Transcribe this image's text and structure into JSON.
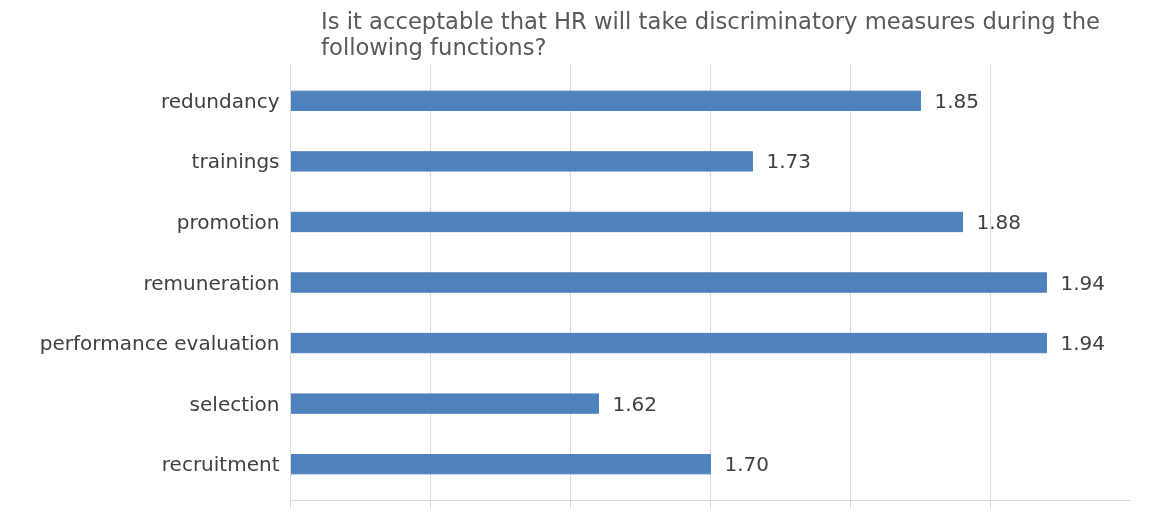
{
  "chart_data": {
    "type": "bar",
    "orientation": "horizontal",
    "title": "Is it acceptable that HR will take discriminatory measures during the following functions?",
    "categories": [
      "redundancy",
      "trainings",
      "promotion",
      "remuneration",
      "performance evaluation",
      "selection",
      "recruitment"
    ],
    "values": [
      1.85,
      1.73,
      1.88,
      1.94,
      1.94,
      1.62,
      1.7
    ],
    "color": "#4f81bd",
    "value_labels": [
      "1.85",
      "1.73",
      "1.88",
      "1.94",
      "1.94",
      "1.62",
      "1.70"
    ],
    "xlim": [
      1.4,
      2.0
    ],
    "xticks": [
      {
        "value": 1.4,
        "label": null
      },
      {
        "value": 1.5,
        "label": null
      },
      {
        "value": 1.6,
        "label": null
      },
      {
        "value": 1.7,
        "label": null
      },
      {
        "value": 1.8,
        "label": null
      },
      {
        "value": 1.9,
        "label": null
      }
    ],
    "grid": "x",
    "tick_labels": "y"
  }
}
